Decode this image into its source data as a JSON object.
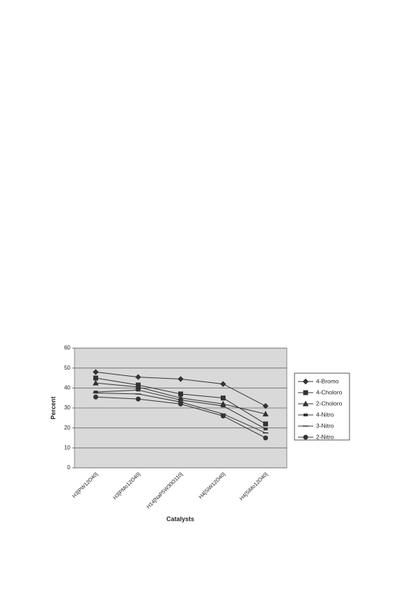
{
  "chart_data": {
    "type": "line",
    "categories": [
      "H3[PW12O40]",
      "H3[PMo12O40]",
      "H14[NaP5W30O110]",
      "H4[SiW12O40]",
      "H4[SiMo12O40]"
    ],
    "x_label": "Catalysts",
    "y_label": "Percent",
    "ylim": [
      0,
      60
    ],
    "yticks": [
      0,
      10,
      20,
      30,
      40,
      50,
      60
    ],
    "grid": true,
    "legend": "right",
    "series": [
      {
        "name": "4-Bromo",
        "color": "#333333",
        "marker": "diamond",
        "values": [
          48,
          45.5,
          44.5,
          42,
          31
        ]
      },
      {
        "name": "4-Choloro",
        "color": "#333333",
        "marker": "square",
        "values": [
          45,
          41.5,
          37,
          35,
          22
        ]
      },
      {
        "name": "2-Choloro",
        "color": "#333333",
        "marker": "triangle",
        "values": [
          42.5,
          40.5,
          35,
          32,
          27
        ]
      },
      {
        "name": "4-Nitro",
        "color": "#333333",
        "marker": "small-square",
        "values": [
          38,
          39,
          34,
          31,
          19.5
        ]
      },
      {
        "name": "3-Nitro",
        "color": "#333333",
        "marker": "dash",
        "values": [
          37.5,
          37,
          33,
          27,
          17.5
        ]
      },
      {
        "name": "2-Nitro",
        "color": "#333333",
        "marker": "circle",
        "values": [
          35.5,
          34.5,
          32,
          26,
          15
        ]
      }
    ]
  }
}
